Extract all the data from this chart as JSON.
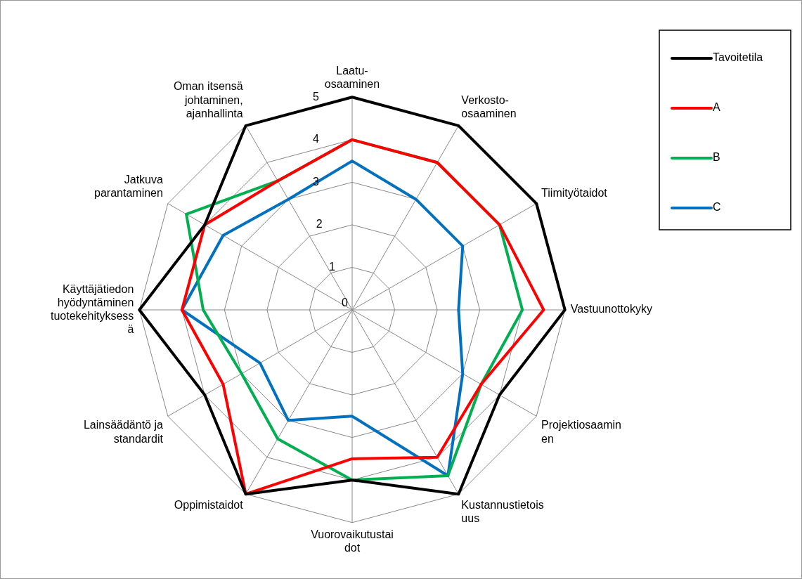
{
  "chart_data": {
    "type": "radar",
    "categories": [
      "Laatu-\nosaaminen",
      "Verkosto-\nosaaminen",
      "Tiimityötaidot",
      "Vastuunottokyky",
      "Projektiosaamin\nen",
      "Kustannustietois\nuus",
      "Vuorovaikutustai\ndot",
      "Oppimistaidot",
      "Lainsäädäntö ja\nstandardit",
      "Käyttäjätiedon\nhyödyntäminen\ntuotekehityksess\nä",
      "Jatkuva\nparantaminen",
      "Oman itsensä\njohtaminen,\najanhallinta"
    ],
    "series": [
      {
        "name": "Tavoitetila",
        "color": "#000000",
        "values": [
          5,
          5,
          5,
          5,
          4,
          5,
          4,
          5,
          4,
          5,
          4,
          5
        ]
      },
      {
        "name": "A",
        "color": "#ff0000",
        "values": [
          4,
          4,
          4,
          4.5,
          3.5,
          4,
          3.5,
          5,
          3.5,
          4,
          4,
          3.5
        ]
      },
      {
        "name": "B",
        "color": "#00b050",
        "values": [
          4,
          4,
          4,
          4,
          3.5,
          4.5,
          4,
          3.5,
          3,
          3.5,
          4.5,
          3.5
        ]
      },
      {
        "name": "C",
        "color": "#0070c0",
        "values": [
          3.5,
          3,
          3,
          2.5,
          3,
          4.5,
          2.5,
          3,
          2.5,
          4,
          3.5,
          3
        ]
      }
    ],
    "ylim": [
      0,
      5
    ],
    "yticks": [
      0,
      1,
      2,
      3,
      4,
      5
    ],
    "grid": true,
    "legend": "top right",
    "marker": "none",
    "line_style": "solid"
  }
}
